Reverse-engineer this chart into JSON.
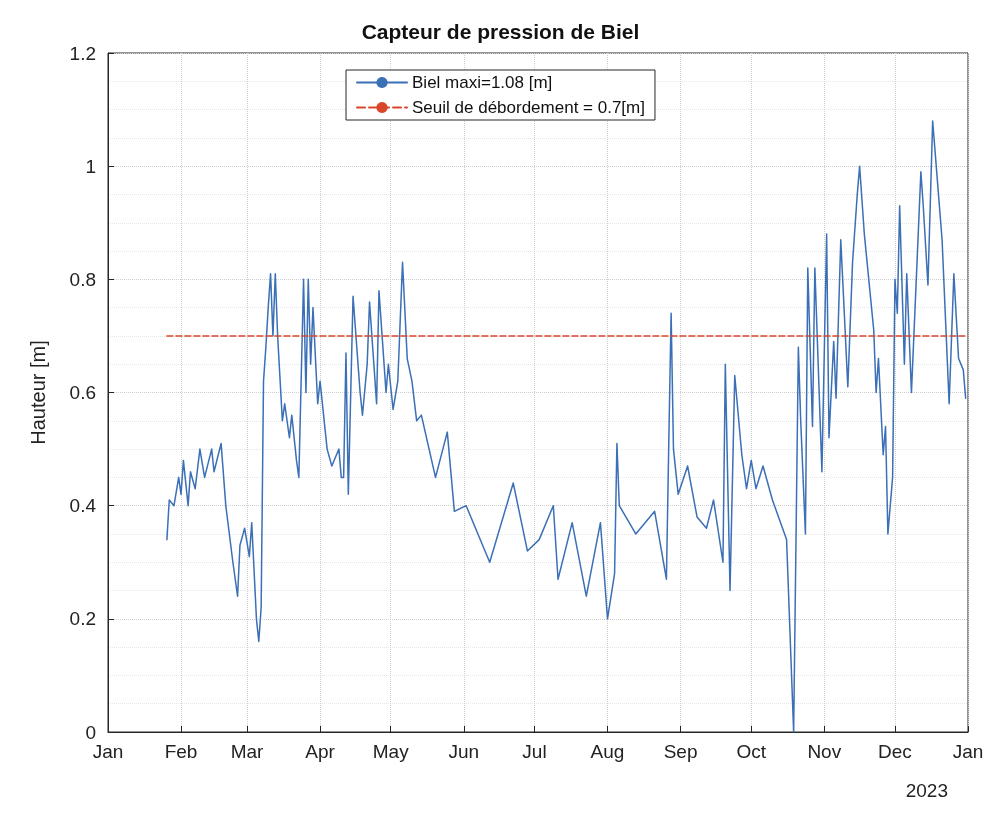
{
  "chart_data": {
    "type": "line",
    "title": "Capteur de pression de Biel",
    "ylabel": "Hauteur [m]",
    "xlim": [
      "2023-01-01",
      "2024-01-01"
    ],
    "xticks": [
      {
        "value": "2023-01-01",
        "label": "Jan"
      },
      {
        "value": "2023-02-01",
        "label": "Feb"
      },
      {
        "value": "2023-03-01",
        "label": "Mar"
      },
      {
        "value": "2023-04-01",
        "label": "Apr"
      },
      {
        "value": "2023-05-01",
        "label": "May"
      },
      {
        "value": "2023-06-01",
        "label": "Jun"
      },
      {
        "value": "2023-07-01",
        "label": "Jul"
      },
      {
        "value": "2023-08-01",
        "label": "Aug"
      },
      {
        "value": "2023-09-01",
        "label": "Sep"
      },
      {
        "value": "2023-10-01",
        "label": "Oct"
      },
      {
        "value": "2023-11-01",
        "label": "Nov"
      },
      {
        "value": "2023-12-01",
        "label": "Dec"
      },
      {
        "value": "2024-01-01",
        "label": "Jan"
      }
    ],
    "ylim": [
      0,
      1.2
    ],
    "yticks": [
      0,
      0.2,
      0.4,
      0.6,
      0.8,
      1,
      1.2
    ],
    "grid": true,
    "legend": "top",
    "marker": "none",
    "annotations": [
      "2023"
    ],
    "series": [
      {
        "name": "Biel maxi=1.08 [m]",
        "color": "#3b6fb6",
        "line_style": "solid",
        "x": [
          "2023-01-26",
          "2023-01-27",
          "2023-01-29",
          "2023-01-31",
          "2023-02-01",
          "2023-02-02",
          "2023-02-04",
          "2023-02-05",
          "2023-02-07",
          "2023-02-09",
          "2023-02-11",
          "2023-02-14",
          "2023-02-15",
          "2023-02-18",
          "2023-02-20",
          "2023-02-23",
          "2023-02-25",
          "2023-02-26",
          "2023-02-28",
          "2023-03-02",
          "2023-03-03",
          "2023-03-05",
          "2023-03-06",
          "2023-03-07",
          "2023-03-08",
          "2023-03-09",
          "2023-03-10",
          "2023-03-11",
          "2023-03-12",
          "2023-03-13",
          "2023-03-14",
          "2023-03-16",
          "2023-03-17",
          "2023-03-19",
          "2023-03-20",
          "2023-03-22",
          "2023-03-23",
          "2023-03-25",
          "2023-03-26",
          "2023-03-27",
          "2023-03-28",
          "2023-03-29",
          "2023-03-31",
          "2023-04-01",
          "2023-04-04",
          "2023-04-06",
          "2023-04-09",
          "2023-04-10",
          "2023-04-11",
          "2023-04-12",
          "2023-04-13",
          "2023-04-15",
          "2023-04-18",
          "2023-04-19",
          "2023-04-21",
          "2023-04-22",
          "2023-04-25",
          "2023-04-26",
          "2023-04-28",
          "2023-04-29",
          "2023-04-30",
          "2023-05-02",
          "2023-05-04",
          "2023-05-06",
          "2023-05-08",
          "2023-05-10",
          "2023-05-12",
          "2023-05-14",
          "2023-05-20",
          "2023-05-25",
          "2023-05-28",
          "2023-06-02",
          "2023-06-07",
          "2023-06-12",
          "2023-06-22",
          "2023-06-28",
          "2023-07-03",
          "2023-07-09",
          "2023-07-11",
          "2023-07-17",
          "2023-07-23",
          "2023-07-29",
          "2023-08-01",
          "2023-08-04",
          "2023-08-05",
          "2023-08-06",
          "2023-08-13",
          "2023-08-21",
          "2023-08-26",
          "2023-08-27",
          "2023-08-28",
          "2023-08-29",
          "2023-08-31",
          "2023-09-04",
          "2023-09-08",
          "2023-09-12",
          "2023-09-15",
          "2023-09-19",
          "2023-09-20",
          "2023-09-22",
          "2023-09-24",
          "2023-09-27",
          "2023-09-29",
          "2023-10-01",
          "2023-10-03",
          "2023-10-06",
          "2023-10-10",
          "2023-10-16",
          "2023-10-19",
          "2023-10-21",
          "2023-10-22",
          "2023-10-24",
          "2023-10-25",
          "2023-10-27",
          "2023-10-28",
          "2023-10-31",
          "2023-11-02",
          "2023-11-03",
          "2023-11-05",
          "2023-11-06",
          "2023-11-08",
          "2023-11-11",
          "2023-11-13",
          "2023-11-15",
          "2023-11-16",
          "2023-11-18",
          "2023-11-22",
          "2023-11-23",
          "2023-11-24",
          "2023-11-26",
          "2023-11-27",
          "2023-11-28",
          "2023-11-30",
          "2023-12-01",
          "2023-12-02",
          "2023-12-03",
          "2023-12-05",
          "2023-12-06",
          "2023-12-08",
          "2023-12-12",
          "2023-12-13",
          "2023-12-15",
          "2023-12-17",
          "2023-12-21",
          "2023-12-24",
          "2023-12-26",
          "2023-12-28",
          "2023-12-30",
          "2023-12-31"
        ],
        "values": [
          0.34,
          0.41,
          0.4,
          0.45,
          0.42,
          0.48,
          0.4,
          0.46,
          0.43,
          0.5,
          0.45,
          0.5,
          0.46,
          0.51,
          0.4,
          0.3,
          0.24,
          0.33,
          0.36,
          0.31,
          0.37,
          0.2,
          0.16,
          0.22,
          0.62,
          0.68,
          0.75,
          0.81,
          0.7,
          0.81,
          0.7,
          0.55,
          0.58,
          0.52,
          0.56,
          0.48,
          0.45,
          0.8,
          0.6,
          0.8,
          0.65,
          0.75,
          0.58,
          0.62,
          0.5,
          0.47,
          0.5,
          0.45,
          0.45,
          0.67,
          0.42,
          0.77,
          0.6,
          0.56,
          0.65,
          0.76,
          0.58,
          0.78,
          0.66,
          0.6,
          0.65,
          0.57,
          0.62,
          0.83,
          0.66,
          0.62,
          0.55,
          0.56,
          0.45,
          0.53,
          0.39,
          0.4,
          0.35,
          0.3,
          0.44,
          0.32,
          0.34,
          0.4,
          0.27,
          0.37,
          0.24,
          0.37,
          0.2,
          0.28,
          0.51,
          0.4,
          0.35,
          0.39,
          0.27,
          0.51,
          0.74,
          0.5,
          0.42,
          0.47,
          0.38,
          0.36,
          0.41,
          0.3,
          0.65,
          0.25,
          0.63,
          0.49,
          0.43,
          0.48,
          0.43,
          0.47,
          0.41,
          0.34,
          0.0,
          0.68,
          0.55,
          0.35,
          0.82,
          0.54,
          0.82,
          0.46,
          0.88,
          0.52,
          0.69,
          0.59,
          0.87,
          0.61,
          0.83,
          0.95,
          1.0,
          0.88,
          0.71,
          0.6,
          0.66,
          0.49,
          0.54,
          0.35,
          0.45,
          0.8,
          0.74,
          0.93,
          0.65,
          0.81,
          0.6,
          0.99,
          0.93,
          0.79,
          1.08,
          0.87,
          0.58,
          0.81,
          0.66,
          0.64,
          0.59
        ]
      },
      {
        "name": "Seuil de débordement = 0.7[m]",
        "color": "#d9472b",
        "line_style": "dashed",
        "x": [
          "2023-01-26",
          "2023-12-31"
        ],
        "values": [
          0.7,
          0.7
        ]
      }
    ]
  }
}
